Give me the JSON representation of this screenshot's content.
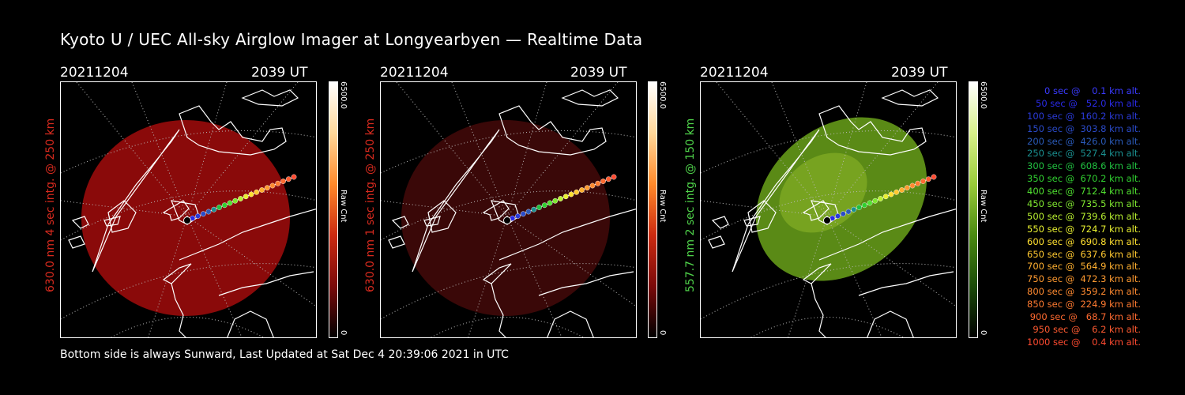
{
  "header": {
    "title": "Kyoto U / UEC All-sky Airglow Imager at Longyearbyen — Realtime Data"
  },
  "panels": [
    {
      "date": "20211204",
      "time": "2039 UT",
      "side_label": "630.0 nm 4 sec intg. @ 250 km",
      "label_color": "#d82a1e",
      "glow_color": "#8a0a0a",
      "glow_brightness": "bright",
      "cbar_max": "6500.0",
      "cbar_min": "0",
      "cbar_unit": "Raw Cnt",
      "cbar_colors": [
        "#ffffff",
        "#ffd89a",
        "#ff8a2a",
        "#cc2a10",
        "#7a0a0a",
        "#000000"
      ]
    },
    {
      "date": "20211204",
      "time": "2039 UT",
      "side_label": "630.0 nm 1 sec intg. @ 250 km",
      "label_color": "#d82a1e",
      "glow_color": "#3a0808",
      "glow_brightness": "dim",
      "cbar_max": "6500.0",
      "cbar_min": "0",
      "cbar_unit": "Raw Cnt",
      "cbar_colors": [
        "#ffffff",
        "#ffd89a",
        "#ff8a2a",
        "#cc2a10",
        "#7a0a0a",
        "#000000"
      ]
    },
    {
      "date": "20211204",
      "time": "2039 UT",
      "side_label": "557.7 nm 2 sec intg. @ 150 km",
      "label_color": "#4fd24a",
      "glow_color": "#5a8a16",
      "glow_brightness": "bright",
      "cbar_max": "6500.0",
      "cbar_min": "0",
      "cbar_unit": "Raw Cnt",
      "cbar_colors": [
        "#ffffff",
        "#d8f08a",
        "#9acb3a",
        "#4a8a10",
        "#1a4a08",
        "#000000"
      ]
    }
  ],
  "footer": {
    "text": "Bottom side is always Sunward, Last Updated at Sat Dec  4 20:39:06 2021 in UTC"
  },
  "legend": [
    {
      "text": "  0 sec @    0.1 km alt.",
      "color": "#3a3aff"
    },
    {
      "text": " 50 sec @   52.0 km alt.",
      "color": "#2a2ae8"
    },
    {
      "text": "100 sec @  160.2 km alt.",
      "color": "#2a3ad8"
    },
    {
      "text": "150 sec @  303.8 km alt.",
      "color": "#2a4ac8"
    },
    {
      "text": "200 sec @  426.0 km alt.",
      "color": "#2a5ab8"
    },
    {
      "text": "250 sec @  527.4 km alt.",
      "color": "#1a9090"
    },
    {
      "text": "300 sec @  608.6 km alt.",
      "color": "#20c040"
    },
    {
      "text": "350 sec @  670.2 km alt.",
      "color": "#30d030"
    },
    {
      "text": "400 sec @  712.4 km alt.",
      "color": "#50e030"
    },
    {
      "text": "450 sec @  735.5 km alt.",
      "color": "#80e830"
    },
    {
      "text": "500 sec @  739.6 km alt.",
      "color": "#b8f030"
    },
    {
      "text": "550 sec @  724.7 km alt.",
      "color": "#e8f030"
    },
    {
      "text": "600 sec @  690.8 km alt.",
      "color": "#ffe030"
    },
    {
      "text": "650 sec @  637.6 km alt.",
      "color": "#ffc830"
    },
    {
      "text": "700 sec @  564.9 km alt.",
      "color": "#ffb030"
    },
    {
      "text": "750 sec @  472.3 km alt.",
      "color": "#ff9a30"
    },
    {
      "text": "800 sec @  359.2 km alt.",
      "color": "#ff8a30"
    },
    {
      "text": "850 sec @  224.9 km alt.",
      "color": "#ff7a30"
    },
    {
      "text": "900 sec @   68.7 km alt.",
      "color": "#ff6a30"
    },
    {
      "text": "950 sec @    6.2 km alt.",
      "color": "#ff5a30"
    },
    {
      "text": "1000 sec @    0.4 km alt.",
      "color": "#ff4a30"
    }
  ]
}
